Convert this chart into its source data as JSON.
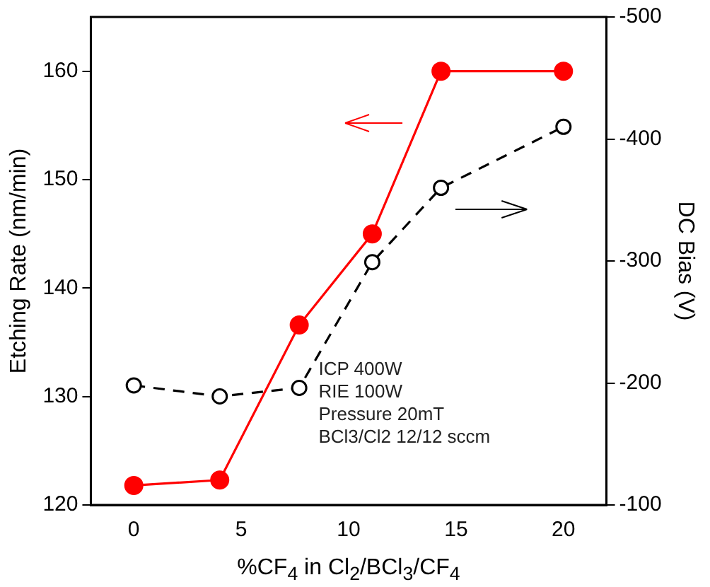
{
  "chart_data": {
    "type": "line",
    "xlabel": "%CF$_{4}$ in Cl$_{2}$/BCl$_{3}$/CF$_{4}$",
    "ylabel": "Etching Rate (nm/min)",
    "y2label": "DC Bias (V)",
    "x": [
      0,
      4,
      7.7,
      11.1,
      14.3,
      20
    ],
    "series": [
      {
        "color": "#ff0000",
        "values": [
          121.8,
          122.3,
          136.6,
          145,
          160,
          160
        ],
        "line_style": "solid"
      },
      {
        "color": "#000000",
        "values": [
          -198,
          -189,
          -196,
          -299,
          -360,
          -410
        ],
        "axis": "y2",
        "line_style": "dashed"
      }
    ],
    "xlim": [
      -2,
      22
    ],
    "xticks": [
      0,
      5,
      10,
      15,
      20
    ],
    "ylim": [
      120,
      165
    ],
    "yticks": [
      120,
      130,
      140,
      150,
      160
    ],
    "y2lim": [
      -100,
      -500
    ],
    "y2ticks": [
      -100,
      -200,
      -300,
      -400,
      -500
    ],
    "marker": "circle",
    "grid": false,
    "legend": false,
    "annotations": [
      "ICP  400W",
      "RIE  100W",
      "Pressure 20mT",
      "BCl3/Cl2  12/12 sccm"
    ]
  }
}
